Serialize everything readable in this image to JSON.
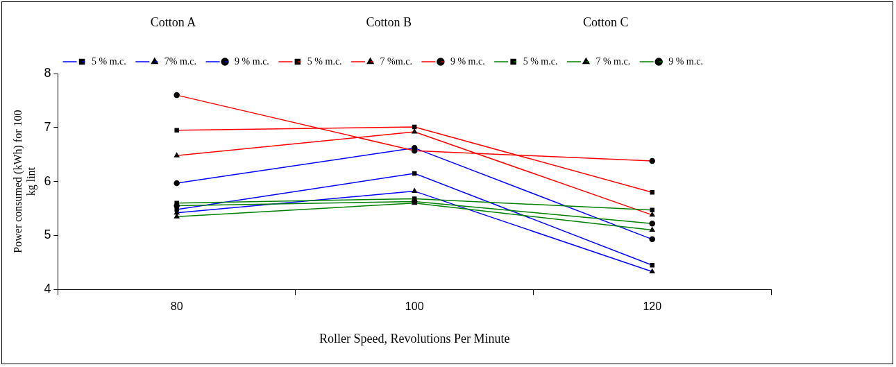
{
  "chart_data": {
    "type": "line",
    "xlabel": "Roller Speed, Revolutions Per Minute",
    "ylabel": "Power consumed (kWh) for 100 kg lint",
    "annotations": [
      "Cotton A",
      "Cotton B",
      "Cotton C"
    ],
    "categories": [
      "80",
      "100",
      "120"
    ],
    "ylim": [
      4,
      8
    ],
    "yticks": [
      4,
      5,
      6,
      7,
      8
    ],
    "grid": false,
    "legend": "top",
    "series": [
      {
        "name": "5 % m.c.",
        "color": "#0000ff",
        "marker": "square",
        "values": [
          5.48,
          6.15,
          4.45
        ]
      },
      {
        "name": "7% m.c.",
        "color": "#0000ff",
        "marker": "triangle",
        "values": [
          5.42,
          5.82,
          4.33
        ]
      },
      {
        "name": "9 % m.c.",
        "color": "#0000ff",
        "marker": "circle",
        "values": [
          5.97,
          6.62,
          4.93
        ]
      },
      {
        "name": "5 % m.c.",
        "color": "#ff0000",
        "marker": "square",
        "values": [
          6.95,
          7.01,
          5.8
        ]
      },
      {
        "name": "7 %m.c.",
        "color": "#ff0000",
        "marker": "triangle",
        "values": [
          6.48,
          6.92,
          5.38
        ]
      },
      {
        "name": "9 % m.c.",
        "color": "#ff0000",
        "marker": "circle",
        "values": [
          7.6,
          6.57,
          6.38
        ]
      },
      {
        "name": "5 % m.c.",
        "color": "#008000",
        "marker": "square",
        "values": [
          5.6,
          5.68,
          5.47
        ]
      },
      {
        "name": "7 % m.c.",
        "color": "#008000",
        "marker": "triangle",
        "values": [
          5.35,
          5.6,
          5.1
        ]
      },
      {
        "name": "9 % m.c.",
        "color": "#008000",
        "marker": "circle",
        "values": [
          5.55,
          5.63,
          5.22
        ]
      }
    ]
  }
}
